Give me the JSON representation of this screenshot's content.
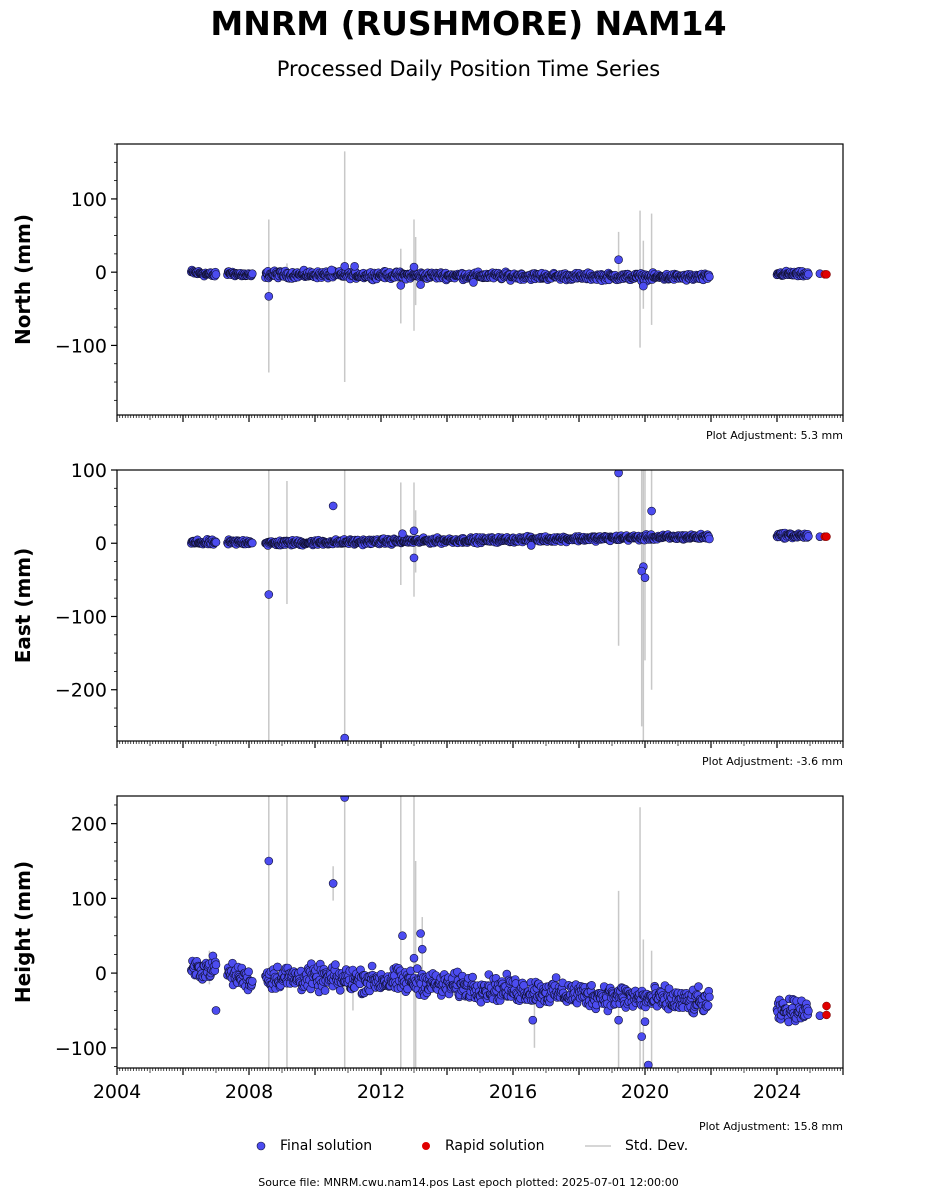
{
  "header": {
    "title": "MNRM (RUSHMORE) NAM14",
    "subtitle": "Processed Daily Position Time Series"
  },
  "legend": {
    "final": "Final solution",
    "rapid": "Rapid solution",
    "stddev": "Std. Dev."
  },
  "footer": {
    "source": "Source file: MNRM.cwu.nam14.pos  Last epoch plotted: 2025-07-01 12:00:00"
  },
  "colors": {
    "final": "#4c4cf0",
    "final_edge": "#101030",
    "rapid": "#e00000",
    "stddev": "#c8c8c8"
  },
  "chart_data": [
    {
      "type": "scatter",
      "ylabel": "North (mm)",
      "plot_adjustment": "Plot Adjustment: 5.3 mm",
      "xlim": [
        2004,
        2026
      ],
      "ylim": [
        -195,
        175
      ],
      "yticks": [
        100,
        0,
        -100
      ],
      "ytick_labels": [
        "100",
        "0",
        "−100"
      ],
      "xticks": [
        2004,
        2008,
        2012,
        2016,
        2020,
        2024
      ],
      "xtick_labels": [],
      "final_series": {
        "segments": [
          {
            "x0": 2006.25,
            "x1": 2007.0,
            "ystart": 0,
            "yend": -4,
            "spread": 3
          },
          {
            "x0": 2007.35,
            "x1": 2008.1,
            "ystart": -1,
            "yend": -5,
            "spread": 3
          },
          {
            "x0": 2008.5,
            "x1": 2021.95,
            "ystart": -3,
            "yend": -7,
            "spread": 4
          },
          {
            "x0": 2024.0,
            "x1": 2024.95,
            "ystart": -2,
            "yend": -3,
            "spread": 3
          }
        ],
        "outliers": [
          {
            "x": 2008.6,
            "y": -33
          },
          {
            "x": 2010.9,
            "y": 8
          },
          {
            "x": 2011.2,
            "y": 8
          },
          {
            "x": 2010.5,
            "y": 3
          },
          {
            "x": 2012.6,
            "y": -18
          },
          {
            "x": 2013.0,
            "y": 7
          },
          {
            "x": 2013.2,
            "y": -17
          },
          {
            "x": 2014.8,
            "y": -14
          },
          {
            "x": 2019.2,
            "y": 17
          },
          {
            "x": 2019.95,
            "y": -19
          },
          {
            "x": 2025.3,
            "y": -2
          }
        ]
      },
      "rapid_series": [
        {
          "x": 2025.45,
          "y": -3
        },
        {
          "x": 2025.5,
          "y": -3
        }
      ],
      "std_dev_bars": [
        {
          "x": 2008.6,
          "lo": -137,
          "hi": 72
        },
        {
          "x": 2009.15,
          "lo": -10,
          "hi": 12
        },
        {
          "x": 2010.9,
          "lo": -150,
          "hi": 165
        },
        {
          "x": 2012.6,
          "lo": -70,
          "hi": 32
        },
        {
          "x": 2013.0,
          "lo": -80,
          "hi": 72
        },
        {
          "x": 2013.05,
          "lo": -45,
          "hi": 48
        },
        {
          "x": 2019.2,
          "lo": -5,
          "hi": 55
        },
        {
          "x": 2019.85,
          "lo": -103,
          "hi": 84
        },
        {
          "x": 2019.95,
          "lo": -50,
          "hi": 43
        },
        {
          "x": 2020.2,
          "lo": -72,
          "hi": 80
        }
      ]
    },
    {
      "type": "scatter",
      "ylabel": "East (mm)",
      "plot_adjustment": "Plot Adjustment: -3.6 mm",
      "xlim": [
        2004,
        2026
      ],
      "ylim": [
        -270,
        100
      ],
      "yticks": [
        100,
        0,
        -100,
        -200
      ],
      "ytick_labels": [
        "100",
        "0",
        "−100",
        "−200"
      ],
      "xticks": [
        2004,
        2008,
        2012,
        2016,
        2020,
        2024
      ],
      "xtick_labels": [],
      "final_series": {
        "segments": [
          {
            "x0": 2006.25,
            "x1": 2007.0,
            "ystart": 1,
            "yend": 1,
            "spread": 3
          },
          {
            "x0": 2007.35,
            "x1": 2008.1,
            "ystart": 1,
            "yend": 2,
            "spread": 3
          },
          {
            "x0": 2008.5,
            "x1": 2021.95,
            "ystart": 0,
            "yend": 9,
            "spread": 3
          },
          {
            "x0": 2024.0,
            "x1": 2024.95,
            "ystart": 11,
            "yend": 10,
            "spread": 3
          }
        ],
        "outliers": [
          {
            "x": 2008.6,
            "y": -70
          },
          {
            "x": 2010.55,
            "y": 51
          },
          {
            "x": 2010.9,
            "y": -266
          },
          {
            "x": 2012.65,
            "y": 13
          },
          {
            "x": 2013.0,
            "y": 17
          },
          {
            "x": 2013.0,
            "y": -20
          },
          {
            "x": 2016.55,
            "y": -3
          },
          {
            "x": 2019.2,
            "y": 96
          },
          {
            "x": 2019.95,
            "y": -32
          },
          {
            "x": 2019.9,
            "y": -38
          },
          {
            "x": 2020.0,
            "y": -47
          },
          {
            "x": 2020.2,
            "y": 44
          },
          {
            "x": 2025.3,
            "y": 9
          }
        ]
      },
      "rapid_series": [
        {
          "x": 2025.45,
          "y": 9
        },
        {
          "x": 2025.5,
          "y": 9
        }
      ],
      "std_dev_bars": [
        {
          "x": 2008.6,
          "lo": -270,
          "hi": 100
        },
        {
          "x": 2009.15,
          "lo": -83,
          "hi": 85
        },
        {
          "x": 2010.9,
          "lo": -270,
          "hi": 100
        },
        {
          "x": 2012.6,
          "lo": -57,
          "hi": 83
        },
        {
          "x": 2013.0,
          "lo": -73,
          "hi": 83
        },
        {
          "x": 2013.05,
          "lo": -40,
          "hi": 45
        },
        {
          "x": 2019.2,
          "lo": -140,
          "hi": 100
        },
        {
          "x": 2019.9,
          "lo": -250,
          "hi": 100
        },
        {
          "x": 2019.95,
          "lo": -270,
          "hi": 100
        },
        {
          "x": 2020.0,
          "lo": -160,
          "hi": 100
        },
        {
          "x": 2020.2,
          "lo": -200,
          "hi": 100
        }
      ]
    },
    {
      "type": "scatter",
      "ylabel": "Height (mm)",
      "plot_adjustment": "Plot Adjustment: 15.8 mm",
      "xlim": [
        2004,
        2026
      ],
      "ylim": [
        -127,
        237
      ],
      "yticks": [
        200,
        100,
        0,
        -100
      ],
      "ytick_labels": [
        "200",
        "100",
        "0",
        "−100"
      ],
      "xticks": [
        2004,
        2008,
        2012,
        2016,
        2020,
        2024
      ],
      "xtick_labels": [
        "2004",
        "2008",
        "2012",
        "2016",
        "2020",
        "2024"
      ],
      "final_series": {
        "segments": [
          {
            "x0": 2006.25,
            "x1": 2007.0,
            "ystart": 3,
            "yend": 8,
            "spread": 12
          },
          {
            "x0": 2007.35,
            "x1": 2008.1,
            "ystart": 0,
            "yend": -10,
            "spread": 12
          },
          {
            "x0": 2008.5,
            "x1": 2013.5,
            "ystart": -5,
            "yend": -12,
            "spread": 14
          },
          {
            "x0": 2013.5,
            "x1": 2021.95,
            "ystart": -15,
            "yend": -40,
            "spread": 14
          },
          {
            "x0": 2024.0,
            "x1": 2024.95,
            "ystart": -52,
            "yend": -47,
            "spread": 12
          }
        ],
        "outliers": [
          {
            "x": 2007.0,
            "y": -50
          },
          {
            "x": 2008.6,
            "y": 150
          },
          {
            "x": 2010.55,
            "y": 120
          },
          {
            "x": 2010.9,
            "y": 235
          },
          {
            "x": 2012.65,
            "y": 50
          },
          {
            "x": 2013.0,
            "y": 20
          },
          {
            "x": 2013.2,
            "y": 53
          },
          {
            "x": 2013.25,
            "y": 32
          },
          {
            "x": 2016.6,
            "y": -63
          },
          {
            "x": 2019.2,
            "y": -63
          },
          {
            "x": 2019.9,
            "y": -85
          },
          {
            "x": 2020.0,
            "y": -65
          },
          {
            "x": 2020.1,
            "y": -123
          },
          {
            "x": 2025.3,
            "y": -57
          }
        ]
      },
      "rapid_series": [
        {
          "x": 2025.5,
          "y": -44
        },
        {
          "x": 2025.5,
          "y": -56
        }
      ],
      "std_dev_bars": [
        {
          "x": 2006.8,
          "lo": -15,
          "hi": 30
        },
        {
          "x": 2008.6,
          "lo": -127,
          "hi": 237
        },
        {
          "x": 2009.15,
          "lo": -127,
          "hi": 237
        },
        {
          "x": 2010.55,
          "lo": 97,
          "hi": 143
        },
        {
          "x": 2010.9,
          "lo": -127,
          "hi": 237
        },
        {
          "x": 2011.15,
          "lo": -50,
          "hi": 10
        },
        {
          "x": 2012.6,
          "lo": -127,
          "hi": 237
        },
        {
          "x": 2013.0,
          "lo": -127,
          "hi": 237
        },
        {
          "x": 2013.05,
          "lo": -127,
          "hi": 150
        },
        {
          "x": 2013.25,
          "lo": -10,
          "hi": 75
        },
        {
          "x": 2016.65,
          "lo": -100,
          "hi": -40
        },
        {
          "x": 2019.2,
          "lo": -127,
          "hi": 110
        },
        {
          "x": 2019.85,
          "lo": -127,
          "hi": 222
        },
        {
          "x": 2019.95,
          "lo": -127,
          "hi": 45
        },
        {
          "x": 2020.2,
          "lo": -127,
          "hi": 30
        }
      ]
    }
  ]
}
